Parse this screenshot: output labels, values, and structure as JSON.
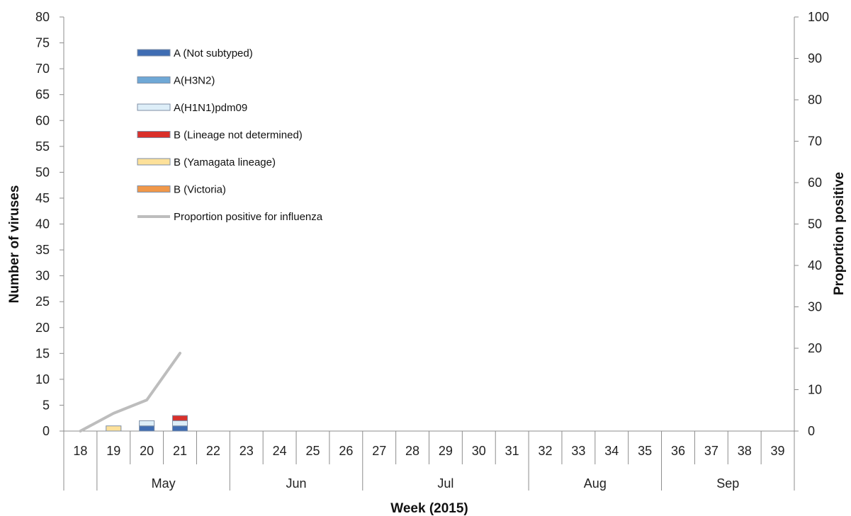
{
  "chart_data": {
    "type": "bar",
    "stacked": true,
    "xlabel": "Week (2015)",
    "ylabel": "Number of viruses",
    "y2label": "Proportion positive",
    "ylim": [
      0,
      80
    ],
    "y2lim": [
      0,
      100
    ],
    "yticks": [
      "0",
      "5",
      "10",
      "15",
      "20",
      "25",
      "30",
      "35",
      "40",
      "45",
      "50",
      "55",
      "60",
      "65",
      "70",
      "75",
      "80"
    ],
    "y2ticks": [
      "0",
      "10",
      "20",
      "30",
      "40",
      "50",
      "60",
      "70",
      "80",
      "90",
      "100"
    ],
    "categories": [
      "18",
      "19",
      "20",
      "21",
      "22",
      "23",
      "24",
      "25",
      "26",
      "27",
      "28",
      "29",
      "30",
      "31",
      "32",
      "33",
      "34",
      "35",
      "36",
      "37",
      "38",
      "39"
    ],
    "month_groups": [
      {
        "label": "",
        "weeks": [
          "18"
        ]
      },
      {
        "label": "May",
        "weeks": [
          "19",
          "20",
          "21",
          "22"
        ]
      },
      {
        "label": "Jun",
        "weeks": [
          "23",
          "24",
          "25",
          "26"
        ]
      },
      {
        "label": "Jul",
        "weeks": [
          "27",
          "28",
          "29",
          "30",
          "31"
        ]
      },
      {
        "label": "Aug",
        "weeks": [
          "32",
          "33",
          "34",
          "35"
        ]
      },
      {
        "label": "Sep",
        "weeks": [
          "36",
          "37",
          "38",
          "39"
        ]
      }
    ],
    "series": [
      {
        "name": "A (Not subtyped)",
        "color": "#3f6db3",
        "values": [
          0,
          0,
          1,
          1,
          0,
          0,
          0,
          0,
          0,
          0,
          0,
          0,
          0,
          0,
          0,
          0,
          0,
          0,
          0,
          0,
          0,
          0
        ]
      },
      {
        "name": "A(H3N2)",
        "color": "#6fa8d6",
        "values": [
          0,
          0,
          0,
          0,
          0,
          0,
          0,
          0,
          0,
          0,
          0,
          0,
          0,
          0,
          0,
          0,
          0,
          0,
          0,
          0,
          0,
          0
        ]
      },
      {
        "name": "A(H1N1)pdm09",
        "color": "#ddeef8",
        "values": [
          0,
          0,
          1,
          1,
          0,
          0,
          0,
          0,
          0,
          0,
          0,
          0,
          0,
          0,
          0,
          0,
          0,
          0,
          0,
          0,
          0,
          0
        ]
      },
      {
        "name": "B (Lineage not determined)",
        "color": "#d9302b",
        "values": [
          0,
          0,
          0,
          1,
          0,
          0,
          0,
          0,
          0,
          0,
          0,
          0,
          0,
          0,
          0,
          0,
          0,
          0,
          0,
          0,
          0,
          0
        ]
      },
      {
        "name": "B (Yamagata lineage)",
        "color": "#fde19a",
        "values": [
          0,
          1,
          0,
          0,
          0,
          0,
          0,
          0,
          0,
          0,
          0,
          0,
          0,
          0,
          0,
          0,
          0,
          0,
          0,
          0,
          0,
          0
        ]
      },
      {
        "name": "B (Victoria)",
        "color": "#f0984a",
        "values": [
          0,
          0,
          0,
          0,
          0,
          0,
          0,
          0,
          0,
          0,
          0,
          0,
          0,
          0,
          0,
          0,
          0,
          0,
          0,
          0,
          0,
          0
        ]
      }
    ],
    "line": {
      "name": "Proportion positive for influenza",
      "color": "#bdbdbd",
      "axis": "right",
      "x": [
        "18",
        "19",
        "20",
        "21"
      ],
      "values": [
        0,
        4.3,
        7.5,
        18.8
      ]
    },
    "legend_position": "top-left"
  }
}
